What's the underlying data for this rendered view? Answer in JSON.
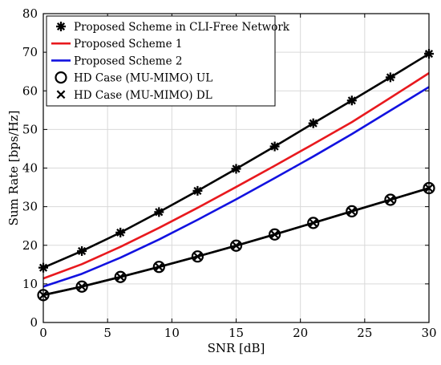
{
  "chart_data": {
    "type": "line",
    "xlabel": "SNR [dB]",
    "ylabel": "Sum Rate [bps/Hz]",
    "xlim": [
      0,
      30
    ],
    "ylim": [
      0,
      80
    ],
    "xticks": [
      "0",
      "5",
      "10",
      "15",
      "20",
      "25",
      "30"
    ],
    "yticks": [
      "0",
      "10",
      "20",
      "30",
      "40",
      "50",
      "60",
      "70",
      "80"
    ],
    "grid": true,
    "legend_position": "top-left",
    "series": [
      {
        "name": "Proposed Scheme in CLI-Free Network",
        "color": "#000000",
        "marker": "asterisk",
        "x": [
          0,
          3,
          6,
          9,
          12,
          15,
          18,
          21,
          24,
          27,
          30
        ],
        "y": [
          14.2,
          18.5,
          23.3,
          28.6,
          34.1,
          39.8,
          45.6,
          51.6,
          57.5,
          63.5,
          69.6
        ]
      },
      {
        "name": "Proposed Scheme 1",
        "color": "#e8191e",
        "marker": "none",
        "x": [
          0,
          3,
          6,
          9,
          12,
          15,
          18,
          21,
          24,
          27,
          30
        ],
        "y": [
          11.4,
          15.1,
          19.6,
          24.5,
          29.7,
          35.1,
          40.6,
          46.2,
          51.9,
          58.2,
          64.6
        ]
      },
      {
        "name": "Proposed Scheme 2",
        "color": "#1212e0",
        "marker": "none",
        "x": [
          0,
          3,
          6,
          9,
          12,
          15,
          18,
          21,
          24,
          27,
          30
        ],
        "y": [
          9.3,
          12.6,
          16.8,
          21.5,
          26.6,
          31.9,
          37.4,
          43.0,
          48.8,
          54.9,
          61.0
        ]
      },
      {
        "name": "HD Case (MU-MIMO) UL",
        "color": "#000000",
        "marker": "circle",
        "x": [
          0,
          3,
          6,
          9,
          12,
          15,
          18,
          21,
          24,
          27,
          30
        ],
        "y": [
          7.1,
          9.3,
          11.8,
          14.4,
          17.1,
          19.9,
          22.8,
          25.8,
          28.8,
          31.8,
          34.8
        ]
      },
      {
        "name": "HD Case (MU-MIMO) DL",
        "color": "#000000",
        "marker": "x",
        "x": [
          0,
          3,
          6,
          9,
          12,
          15,
          18,
          21,
          24,
          27,
          30
        ],
        "y": [
          7.1,
          9.3,
          11.8,
          14.4,
          17.1,
          19.9,
          22.8,
          25.8,
          28.8,
          31.8,
          34.8
        ]
      }
    ]
  }
}
